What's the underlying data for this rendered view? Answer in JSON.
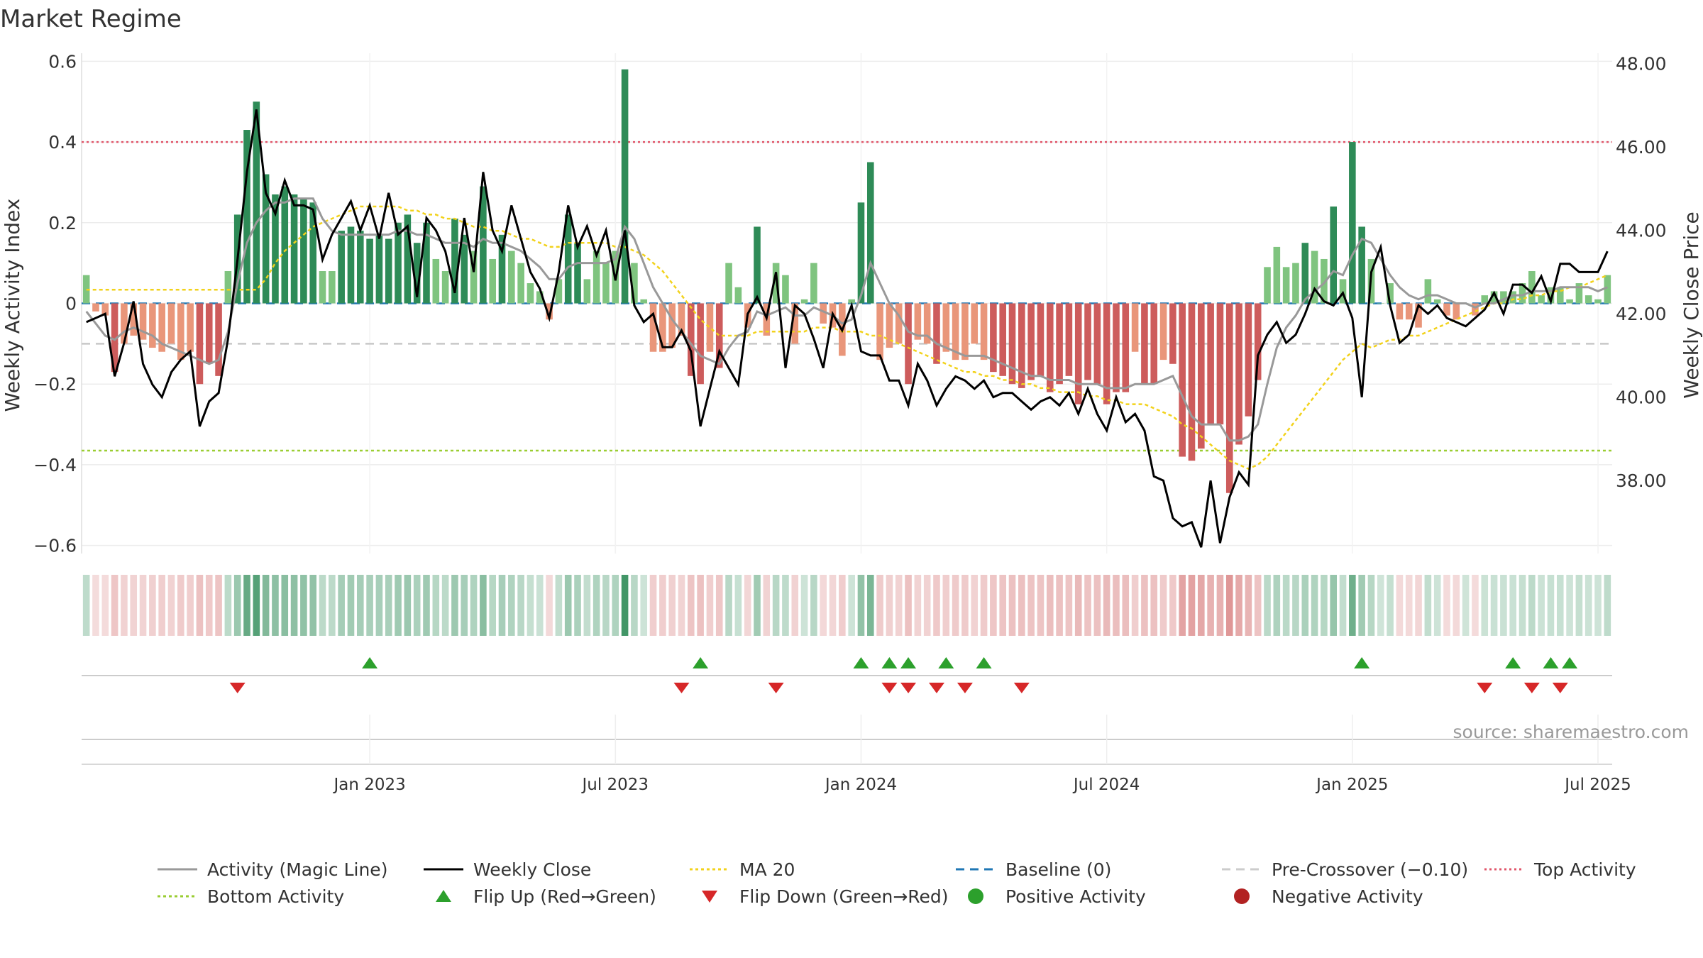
{
  "chart_data": {
    "type": "bar",
    "title": "Market Regime",
    "ylabel": "Weekly Activity Index",
    "y2label": "Weekly Close Price",
    "ylim": [
      -0.62,
      0.62
    ],
    "y2lim": [
      36.25,
      48.25
    ],
    "y_ticks": [
      "0.6",
      "0.4",
      "0.2",
      "0",
      "−0.2",
      "−0.4",
      "−0.6"
    ],
    "y_tick_values": [
      0.6,
      0.4,
      0.2,
      0,
      -0.2,
      -0.4,
      -0.6
    ],
    "y2_ticks": [
      "48.00",
      "46.00",
      "44.00",
      "42.00",
      "40.00",
      "38.00"
    ],
    "y2_tick_values": [
      48,
      46,
      44,
      42,
      40,
      38
    ],
    "x_ticks": [
      "Jan 2023",
      "Jul 2023",
      "Jan 2024",
      "Jul 2024",
      "Jan 2025",
      "Jul 2025"
    ],
    "x_tick_week_index": [
      30,
      56,
      82,
      108,
      134,
      160
    ],
    "source": "source: sharemaestro.com",
    "levels": {
      "top_activity": 0.4,
      "bottom_activity": -0.365,
      "pre_crossover": -0.1,
      "baseline": 0
    },
    "colors": {
      "strong_green": "#2e8b57",
      "light_green": "#7fc47f",
      "strong_red": "#cd5c5c",
      "light_red": "#e9967a",
      "top_line": "#e0556a",
      "bottom_line": "#9acd32",
      "ma_line": "#f2d21b",
      "baseline": "#1f77b4",
      "magic_line": "#999999",
      "close_line": "#000000",
      "flip_up": "#2ca02c",
      "flip_down": "#d62728",
      "positive_dot": "#2ca02c",
      "negative_dot": "#b22222"
    },
    "activity": [
      0.07,
      -0.02,
      -0.03,
      -0.17,
      -0.1,
      -0.08,
      -0.09,
      -0.11,
      -0.12,
      -0.1,
      -0.14,
      -0.12,
      -0.2,
      -0.15,
      -0.18,
      0.08,
      0.22,
      0.43,
      0.5,
      0.32,
      0.27,
      0.29,
      0.27,
      0.26,
      0.25,
      0.08,
      0.08,
      0.18,
      0.19,
      0.18,
      0.16,
      0.17,
      0.16,
      0.2,
      0.22,
      0.15,
      0.2,
      0.11,
      0.08,
      0.21,
      0.17,
      0.13,
      0.29,
      0.11,
      0.17,
      0.13,
      0.1,
      0.05,
      0.03,
      -0.04,
      0.06,
      0.22,
      0.15,
      0.06,
      0.13,
      0.1,
      0.13,
      0.58,
      0.1,
      0.01,
      -0.12,
      -0.12,
      -0.11,
      -0.08,
      -0.18,
      -0.2,
      -0.12,
      -0.16,
      0.1,
      0.04,
      -0.06,
      0.19,
      -0.08,
      0.1,
      0.07,
      -0.1,
      0.01,
      0.1,
      -0.05,
      -0.06,
      -0.13,
      0.01,
      0.25,
      0.35,
      -0.14,
      -0.11,
      -0.1,
      -0.2,
      -0.09,
      -0.1,
      -0.15,
      -0.12,
      -0.14,
      -0.14,
      -0.1,
      -0.14,
      -0.17,
      -0.18,
      -0.2,
      -0.21,
      -0.19,
      -0.18,
      -0.22,
      -0.2,
      -0.18,
      -0.25,
      -0.19,
      -0.2,
      -0.25,
      -0.22,
      -0.22,
      -0.12,
      -0.2,
      -0.2,
      -0.14,
      -0.15,
      -0.38,
      -0.39,
      -0.36,
      -0.3,
      -0.3,
      -0.47,
      -0.35,
      -0.28,
      -0.19,
      0.09,
      0.14,
      0.09,
      0.1,
      0.15,
      0.13,
      0.11,
      0.24,
      0.06,
      0.4,
      0.19,
      0.11,
      0.0,
      0.05,
      -0.04,
      -0.04,
      -0.06,
      0.06,
      0.01,
      -0.03,
      -0.04,
      0.0,
      -0.03,
      0.02,
      0.03,
      0.03,
      0.03,
      0.05,
      0.08,
      0.02,
      0.04,
      0.04,
      0.01,
      0.05,
      0.02,
      0.01,
      0.07
    ],
    "weekly_close": [
      41.8,
      41.9,
      42.0,
      40.5,
      41.3,
      42.3,
      40.8,
      40.3,
      40.0,
      40.6,
      40.9,
      41.1,
      39.3,
      39.9,
      40.1,
      41.4,
      43.3,
      45.4,
      46.9,
      44.9,
      44.4,
      45.2,
      44.6,
      44.6,
      44.5,
      43.3,
      43.9,
      44.3,
      44.7,
      44.0,
      44.6,
      43.8,
      44.9,
      43.9,
      44.1,
      42.4,
      44.3,
      44.0,
      43.5,
      42.5,
      44.3,
      43.0,
      45.4,
      44.0,
      43.5,
      44.6,
      43.8,
      43.0,
      42.6,
      41.9,
      43.0,
      44.6,
      43.6,
      44.1,
      43.4,
      44.0,
      42.8,
      44.0,
      42.2,
      41.8,
      42.0,
      41.2,
      41.2,
      41.6,
      41.1,
      39.3,
      40.2,
      41.1,
      40.7,
      40.3,
      42.0,
      42.4,
      41.9,
      43.0,
      40.7,
      42.2,
      42.0,
      41.4,
      40.7,
      42.0,
      41.6,
      42.2,
      41.1,
      41.0,
      41.0,
      40.4,
      40.4,
      39.8,
      40.8,
      40.4,
      39.8,
      40.2,
      40.5,
      40.4,
      40.2,
      40.4,
      40.0,
      40.1,
      40.1,
      39.9,
      39.7,
      39.9,
      40.0,
      39.8,
      40.1,
      39.6,
      40.2,
      39.6,
      39.2,
      40.0,
      39.4,
      39.6,
      39.2,
      38.1,
      38.0,
      37.1,
      36.9,
      37.0,
      36.4,
      38.0,
      36.5,
      37.6,
      38.2,
      37.9,
      41.0,
      41.5,
      41.8,
      41.3,
      41.5,
      42.0,
      42.6,
      42.3,
      42.2,
      42.5,
      41.9,
      40.0,
      43.0,
      43.6,
      42.2,
      41.3,
      41.5,
      42.2,
      42.0,
      42.2,
      41.9,
      41.8,
      41.7,
      41.9,
      42.1,
      42.5,
      42.0,
      42.7,
      42.7,
      42.5,
      42.9,
      42.3,
      43.2,
      43.2,
      43.0,
      43.0,
      43.0,
      43.5
    ],
    "magic_line": [
      -0.02,
      -0.05,
      -0.08,
      -0.09,
      -0.07,
      -0.06,
      -0.07,
      -0.08,
      -0.1,
      -0.11,
      -0.12,
      -0.13,
      -0.14,
      -0.15,
      -0.14,
      -0.07,
      0.05,
      0.15,
      0.2,
      0.23,
      0.25,
      0.25,
      0.26,
      0.26,
      0.26,
      0.21,
      0.18,
      0.17,
      0.17,
      0.17,
      0.17,
      0.17,
      0.17,
      0.18,
      0.18,
      0.17,
      0.17,
      0.16,
      0.15,
      0.15,
      0.15,
      0.14,
      0.16,
      0.15,
      0.15,
      0.14,
      0.13,
      0.11,
      0.09,
      0.06,
      0.06,
      0.09,
      0.1,
      0.1,
      0.1,
      0.1,
      0.11,
      0.19,
      0.16,
      0.1,
      0.04,
      0.0,
      -0.04,
      -0.07,
      -0.1,
      -0.13,
      -0.14,
      -0.15,
      -0.11,
      -0.08,
      -0.07,
      -0.02,
      -0.03,
      -0.02,
      -0.01,
      -0.03,
      -0.03,
      -0.01,
      -0.02,
      -0.03,
      -0.05,
      -0.04,
      0.02,
      0.1,
      0.05,
      0.0,
      -0.03,
      -0.07,
      -0.08,
      -0.08,
      -0.1,
      -0.11,
      -0.12,
      -0.13,
      -0.13,
      -0.13,
      -0.14,
      -0.15,
      -0.16,
      -0.17,
      -0.18,
      -0.18,
      -0.19,
      -0.19,
      -0.19,
      -0.2,
      -0.2,
      -0.2,
      -0.21,
      -0.21,
      -0.21,
      -0.2,
      -0.2,
      -0.2,
      -0.19,
      -0.18,
      -0.23,
      -0.28,
      -0.3,
      -0.3,
      -0.3,
      -0.34,
      -0.34,
      -0.33,
      -0.3,
      -0.2,
      -0.11,
      -0.06,
      -0.03,
      0.01,
      0.03,
      0.05,
      0.08,
      0.07,
      0.12,
      0.16,
      0.15,
      0.11,
      0.07,
      0.04,
      0.02,
      0.01,
      0.02,
      0.02,
      0.01,
      0.0,
      0.0,
      -0.01,
      0.0,
      0.0,
      0.01,
      0.02,
      0.02,
      0.03,
      0.03,
      0.03,
      0.04,
      0.04,
      0.04,
      0.04,
      0.03,
      0.04
    ],
    "ma20": [
      0.034,
      0.034,
      0.034,
      0.034,
      0.034,
      0.034,
      0.034,
      0.034,
      0.034,
      0.034,
      0.034,
      0.034,
      0.034,
      0.034,
      0.034,
      0.034,
      0.034,
      0.034,
      0.034,
      0.06,
      0.1,
      0.13,
      0.15,
      0.17,
      0.19,
      0.2,
      0.21,
      0.22,
      0.23,
      0.24,
      0.24,
      0.24,
      0.24,
      0.24,
      0.23,
      0.23,
      0.22,
      0.22,
      0.21,
      0.21,
      0.2,
      0.19,
      0.19,
      0.18,
      0.18,
      0.17,
      0.16,
      0.16,
      0.15,
      0.14,
      0.14,
      0.15,
      0.15,
      0.15,
      0.15,
      0.15,
      0.14,
      0.14,
      0.13,
      0.12,
      0.1,
      0.08,
      0.05,
      0.02,
      -0.01,
      -0.04,
      -0.06,
      -0.08,
      -0.08,
      -0.08,
      -0.08,
      -0.07,
      -0.07,
      -0.07,
      -0.07,
      -0.07,
      -0.07,
      -0.06,
      -0.06,
      -0.06,
      -0.07,
      -0.07,
      -0.07,
      -0.08,
      -0.08,
      -0.09,
      -0.1,
      -0.11,
      -0.12,
      -0.13,
      -0.14,
      -0.15,
      -0.16,
      -0.17,
      -0.17,
      -0.18,
      -0.18,
      -0.19,
      -0.19,
      -0.2,
      -0.2,
      -0.21,
      -0.21,
      -0.22,
      -0.22,
      -0.22,
      -0.23,
      -0.23,
      -0.24,
      -0.24,
      -0.25,
      -0.25,
      -0.25,
      -0.26,
      -0.27,
      -0.28,
      -0.3,
      -0.31,
      -0.33,
      -0.35,
      -0.37,
      -0.39,
      -0.4,
      -0.41,
      -0.4,
      -0.38,
      -0.35,
      -0.32,
      -0.29,
      -0.26,
      -0.23,
      -0.2,
      -0.17,
      -0.14,
      -0.12,
      -0.1,
      -0.11,
      -0.1,
      -0.09,
      -0.09,
      -0.08,
      -0.08,
      -0.07,
      -0.06,
      -0.05,
      -0.04,
      -0.03,
      -0.02,
      -0.01,
      0.0,
      0.0,
      0.01,
      0.01,
      0.02,
      0.02,
      0.03,
      0.03,
      0.04,
      0.04,
      0.05,
      0.06,
      0.07
    ],
    "flip_up_weeks": [
      30,
      65,
      82,
      85,
      87,
      91,
      95,
      135,
      151,
      155,
      157
    ],
    "flip_down_weeks": [
      16,
      63,
      73,
      85,
      87,
      90,
      93,
      99,
      148,
      153,
      156
    ],
    "legend": [
      {
        "label": "Activity (Magic Line)",
        "kind": "line",
        "color": "#999999",
        "dash": ""
      },
      {
        "label": "Weekly Close",
        "kind": "line",
        "color": "#000000",
        "dash": ""
      },
      {
        "label": "MA 20",
        "kind": "line",
        "color": "#f2d21b",
        "dash": "4,4"
      },
      {
        "label": "Baseline (0)",
        "kind": "line",
        "color": "#1f77b4",
        "dash": "12,8"
      },
      {
        "label": "Pre-Crossover (−0.10)",
        "kind": "line",
        "color": "#cccccc",
        "dash": "12,8"
      },
      {
        "label": "Top Activity",
        "kind": "line",
        "color": "#e0556a",
        "dash": "3,4"
      },
      {
        "label": "Bottom Activity",
        "kind": "line",
        "color": "#9acd32",
        "dash": "4,4"
      },
      {
        "label": "Flip Up (Red→Green)",
        "kind": "tri-up",
        "color": "#2ca02c",
        "dash": ""
      },
      {
        "label": "Flip Down (Green→Red)",
        "kind": "tri-down",
        "color": "#d62728",
        "dash": ""
      },
      {
        "label": "Positive Activity",
        "kind": "dot",
        "color": "#2ca02c",
        "dash": ""
      },
      {
        "label": "Negative Activity",
        "kind": "dot",
        "color": "#b22222",
        "dash": ""
      }
    ]
  }
}
